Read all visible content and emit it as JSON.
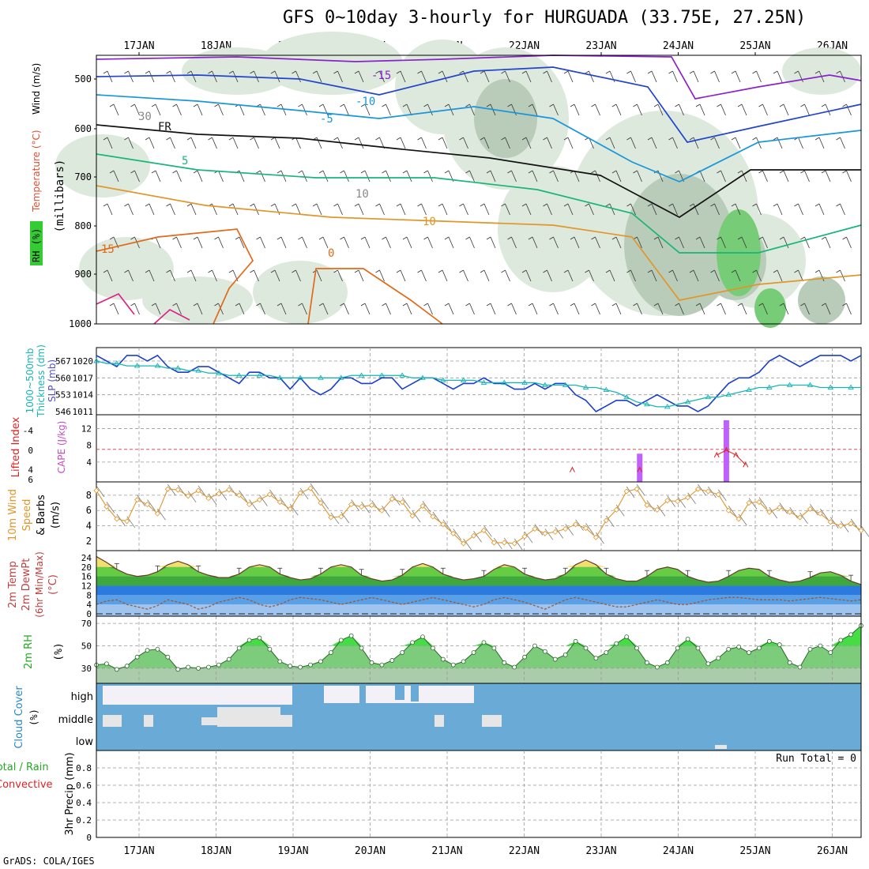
{
  "title": "GFS 0~10day 3-hourly for HURGUADA (33.75E, 27.25N)",
  "credit": "GrADS: COLA/IGES",
  "colors": {
    "blue": "#1a3fcc",
    "cyan": "#18b4b4",
    "green": "#22aa22",
    "orange": "#e0962a",
    "red": "#e02020",
    "violet": "#c060ff",
    "cloud": "#6aaad6",
    "cloudlight": "#f4f0f8",
    "cloudgray": "#e6e6e6",
    "rhfill": "#88cc88"
  },
  "chart_data": [
    {
      "panel": "upper-air",
      "type": "contour",
      "x": [
        "17JAN",
        "18JAN",
        "19JAN",
        "20JAN",
        "21JAN",
        "22JAN",
        "23JAN",
        "24JAN",
        "25JAN",
        "26JAN"
      ],
      "y_ticks": [
        "500",
        "600",
        "700",
        "800",
        "900",
        "1000"
      ],
      "ylabel": "(millibars)",
      "legend": [
        "RH (%)",
        "Temperature (°C)",
        "Wind (m/s)"
      ],
      "contour_labels": [
        "-15",
        "-10",
        "-5",
        "FR",
        "5",
        "10",
        "15",
        "0",
        "30",
        "10"
      ]
    },
    {
      "panel": "slp-thickness",
      "type": "line",
      "ylabel_left": [
        "1000~500mb",
        "Thickness (dm)"
      ],
      "ylabel_right": "SLP (mb)",
      "thickness_ticks": [
        "567",
        "560",
        "553",
        "546"
      ],
      "slp_ticks": [
        "1020",
        "1017",
        "1014",
        "1011"
      ],
      "series": [
        {
          "name": "SLP",
          "values": [
            1021,
            1020,
            1019,
            1021,
            1021,
            1020,
            1021,
            1019,
            1018,
            1018,
            1019,
            1019,
            1018,
            1017,
            1016,
            1018,
            1018,
            1017,
            1017,
            1015,
            1017,
            1015,
            1014,
            1015,
            1017,
            1017,
            1016,
            1016,
            1017,
            1017,
            1015,
            1016,
            1017,
            1017,
            1016,
            1015,
            1016,
            1016,
            1017,
            1016,
            1016,
            1015,
            1015,
            1016,
            1015,
            1016,
            1016,
            1014,
            1013,
            1011,
            1012,
            1013,
            1013,
            1012,
            1013,
            1014,
            1013,
            1012,
            1012,
            1011,
            1012,
            1014,
            1016,
            1017,
            1017,
            1018,
            1020,
            1021,
            1020,
            1019,
            1020,
            1021,
            1021,
            1021,
            1020,
            1021
          ]
        },
        {
          "name": "Thickness",
          "values": [
            567,
            566,
            566,
            565,
            565,
            565,
            565,
            564,
            564,
            563,
            563,
            562,
            562,
            561,
            561,
            561,
            561,
            561,
            560,
            560,
            560,
            560,
            560,
            560,
            560,
            561,
            561,
            561,
            561,
            561,
            561,
            560,
            560,
            560,
            559,
            559,
            559,
            559,
            558,
            558,
            558,
            558,
            558,
            558,
            557,
            557,
            557,
            557,
            556,
            556,
            555,
            554,
            552,
            550,
            549,
            548,
            548,
            549,
            550,
            551,
            552,
            552,
            553,
            554,
            555,
            556,
            556,
            557,
            557,
            557,
            557,
            556,
            556,
            556,
            556,
            556
          ]
        }
      ]
    },
    {
      "panel": "cape-li",
      "type": "bar",
      "ylabel_left": "Lifted Index",
      "ylabel_right": "CAPE (J/kg)",
      "li_ticks": [
        "-4",
        "0",
        "4",
        "6"
      ],
      "cape_ticks": [
        "12",
        "8",
        "4"
      ],
      "cape_bars": [
        {
          "x": "23JAN 12Z",
          "value": 6
        },
        {
          "x": "24JAN 15Z",
          "value": 14
        }
      ],
      "li_points": [
        {
          "x": "22JAN 15Z",
          "value": 4
        },
        {
          "x": "23JAN 12Z",
          "value": 4
        },
        {
          "x": "24JAN 12Z",
          "value": 1
        },
        {
          "x": "24JAN 15Z",
          "value": 0
        },
        {
          "x": "24JAN 18Z",
          "value": 1
        },
        {
          "x": "24JAN 21Z",
          "value": 3
        }
      ]
    },
    {
      "panel": "wind10m",
      "type": "line",
      "ylabel": [
        "10m Wind",
        "Speed",
        "& Barbs",
        "(m/s)"
      ],
      "y_ticks": [
        "8",
        "6",
        "4",
        "2"
      ],
      "values": [
        8.6,
        6.5,
        4.9,
        4.6,
        7.4,
        6.8,
        5.6,
        8.8,
        8.7,
        7.9,
        8.6,
        7.6,
        8.2,
        8.7,
        8.0,
        6.8,
        7.4,
        8.1,
        7.1,
        6.2,
        8.3,
        8.9,
        7.0,
        5.1,
        5.2,
        6.8,
        6.5,
        6.7,
        6.0,
        7.5,
        7.1,
        5.3,
        6.6,
        5.2,
        4.2,
        3.0,
        1.7,
        2.7,
        3.4,
        1.8,
        1.8,
        1.7,
        2.6,
        3.6,
        3.0,
        3.2,
        3.6,
        4.2,
        3.7,
        2.5,
        4.7,
        6.1,
        8.5,
        8.8,
        6.7,
        6.1,
        7.3,
        7.2,
        7.7,
        8.8,
        8.5,
        8.1,
        6.0,
        4.9,
        7.0,
        7.1,
        5.8,
        6.4,
        5.8,
        5.1,
        6.2,
        5.6,
        4.5,
        4.0,
        4.3,
        3.4
      ]
    },
    {
      "panel": "temp2m",
      "type": "area",
      "ylabel": [
        "2m Temp",
        "2m DewPt",
        "(6hr Min/Max)",
        "(°C)"
      ],
      "y_ticks": [
        "24",
        "20",
        "16",
        "12",
        "8",
        "4",
        "0"
      ],
      "series": [
        {
          "name": "2m Temp",
          "values": [
            24.5,
            22,
            19,
            17,
            16,
            16.5,
            18,
            21,
            22.5,
            21,
            18,
            16.5,
            15.5,
            15.5,
            17,
            20,
            21,
            20,
            17,
            15.5,
            14.5,
            15,
            17,
            20,
            21,
            20,
            16.5,
            15,
            14,
            14.5,
            16.5,
            20,
            21.5,
            20,
            17,
            15.5,
            14.5,
            15,
            16,
            19,
            21,
            20,
            17,
            15.5,
            14.5,
            15,
            17,
            21,
            23,
            21,
            17,
            15,
            14,
            14,
            16,
            19,
            20,
            19,
            16,
            14.5,
            13.5,
            14,
            16,
            18.5,
            19.5,
            19,
            16,
            14.5,
            13.5,
            14,
            15.5,
            17.5,
            18,
            16.5,
            14,
            12.5
          ]
        },
        {
          "name": "2m DewPt",
          "values": [
            4,
            5.5,
            6,
            4,
            3,
            2,
            3.5,
            6,
            5,
            4,
            2,
            3,
            5,
            6,
            7,
            6,
            4,
            3,
            4,
            6,
            7,
            6.5,
            6,
            5,
            4,
            5,
            6,
            7,
            6,
            5,
            4,
            5,
            6,
            7,
            6,
            5,
            4,
            3,
            4,
            6,
            7,
            6,
            5,
            3.5,
            2,
            4,
            6,
            7,
            6,
            5,
            4,
            3,
            3,
            4,
            5,
            6,
            5,
            4,
            4,
            5,
            6,
            6.5,
            7,
            7,
            6.5,
            6,
            6,
            6,
            5.5,
            6,
            6.5,
            7,
            6.5,
            6,
            5.5,
            6
          ]
        }
      ]
    },
    {
      "panel": "rh2m",
      "type": "area",
      "ylabel": [
        "2m RH",
        "(%)"
      ],
      "y_ticks": [
        "70",
        "50",
        "30"
      ],
      "values": [
        33,
        34,
        29,
        32,
        40,
        46,
        47,
        40,
        29,
        31,
        30,
        31,
        33,
        38,
        48,
        55,
        57,
        47,
        36,
        32,
        31,
        33,
        36,
        44,
        55,
        59,
        48,
        35,
        33,
        37,
        44,
        53,
        58,
        48,
        38,
        33,
        36,
        44,
        53,
        48,
        35,
        31,
        40,
        50,
        45,
        38,
        42,
        54,
        48,
        39,
        44,
        52,
        58,
        48,
        35,
        31,
        35,
        48,
        56,
        48,
        34,
        39,
        47,
        49,
        44,
        48,
        54,
        51,
        35,
        31,
        47,
        50,
        44,
        55,
        60,
        68
      ]
    },
    {
      "panel": "cloud",
      "type": "heatmap",
      "ylabel": [
        "Cloud Cover",
        "(%)"
      ],
      "rows": [
        "high",
        "middle",
        "low"
      ]
    },
    {
      "panel": "precip",
      "type": "bar",
      "ylabel": [
        "Total / Rain",
        "Convective",
        "3hr Precip (mm)"
      ],
      "y_ticks": [
        "0.8",
        "0.6",
        "0.4",
        "0.2",
        "0"
      ],
      "run_total": "Run Total = 0",
      "values": []
    }
  ]
}
